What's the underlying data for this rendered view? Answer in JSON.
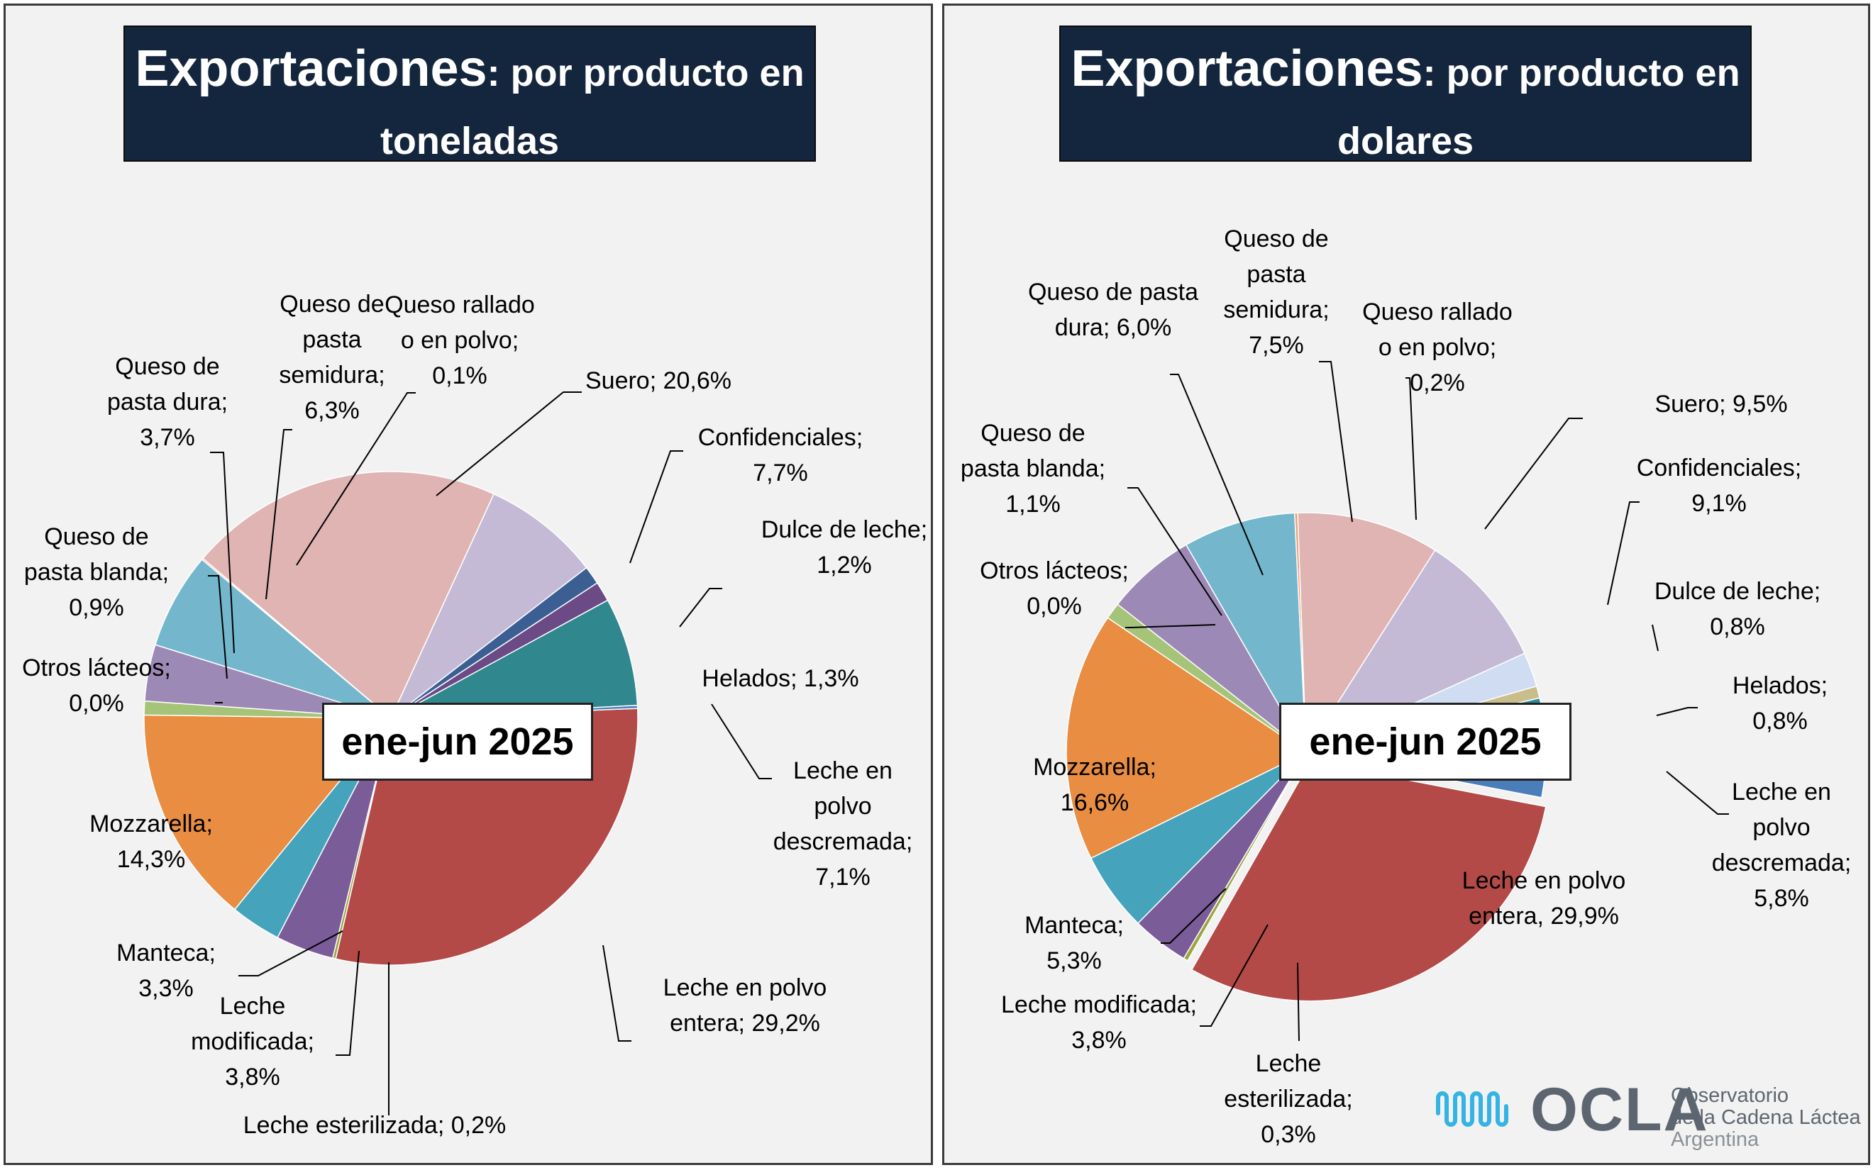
{
  "panels": [
    {
      "title_main": "Exportaciones",
      "title_rest": ": por producto en toneladas",
      "title_line2": "toneladas",
      "period": "ene-jun 2025"
    },
    {
      "title_main": "Exportaciones",
      "title_rest": ": por producto en dolares",
      "title_line2": "dolares",
      "period": "ene-jun 2025"
    }
  ],
  "logo": {
    "name": "OCLA",
    "line1": "Observatorio",
    "line2": "de la Cadena Láctea",
    "line3": "Argentina"
  },
  "chart_data": [
    {
      "type": "pie",
      "title": "Exportaciones: por producto en toneladas",
      "subtitle": "ene-jun 2025",
      "slices": [
        {
          "name": "Leche en polvo entera",
          "value": 29.2,
          "label": "Leche en polvo entera; 29,2%",
          "color": "#b34a48"
        },
        {
          "name": "Leche esterilizada",
          "value": 0.2,
          "label": "Leche esterilizada; 0,2%",
          "color": "#9aa63d"
        },
        {
          "name": "Leche modificada",
          "value": 3.8,
          "label": "Leche modificada; 3,8%",
          "color": "#7a5c99"
        },
        {
          "name": "Manteca",
          "value": 3.3,
          "label": "Manteca; 3,3%",
          "color": "#45a3bc"
        },
        {
          "name": "Mozzarella",
          "value": 14.3,
          "label": "Mozzarella; 14,3%",
          "color": "#e88d42"
        },
        {
          "name": "Otros lácteos",
          "value": 0.0,
          "label": "Otros lácteos; 0,0%",
          "color": "#4a7ebb"
        },
        {
          "name": "Queso de pasta blanda",
          "value": 0.9,
          "label": "Queso de pasta blanda; 0,9%",
          "color": "#a5c479"
        },
        {
          "name": "Queso de pasta dura",
          "value": 3.7,
          "label": "Queso de pasta dura; 3,7%",
          "color": "#9d89b5"
        },
        {
          "name": "Queso de pasta semidura",
          "value": 6.3,
          "label": "Queso de pasta semidura; 6,3%",
          "color": "#74b7cd"
        },
        {
          "name": "Queso rallado o en polvo",
          "value": 0.1,
          "label": "Queso rallado o en polvo; 0,1%",
          "color": "#f2a07b"
        },
        {
          "name": "Suero",
          "value": 20.6,
          "label": "Suero; 20,6%",
          "color": "#dfb4b3"
        },
        {
          "name": "Confidenciales",
          "value": 7.7,
          "label": "Confidenciales; 7,7%",
          "color": "#c4bad6"
        },
        {
          "name": "Dulce de leche",
          "value": 1.2,
          "label": "Dulce de leche; 1,2%",
          "color": "#3c5f93"
        },
        {
          "name": "Helados",
          "value": 1.3,
          "label": "Helados; 1,3%",
          "color": "#6b4a85"
        },
        {
          "name": "Leche en polvo descremada",
          "value": 7.1,
          "label": "Leche en polvo descremada; 7,1%",
          "color": "#31878e"
        },
        {
          "name": "Leche en polvo descremada",
          "value": 0.2,
          "label": "",
          "color": "#4a7ebb"
        }
      ]
    },
    {
      "type": "pie",
      "title": "Exportaciones: por producto en dolares",
      "subtitle": "ene-jun 2025",
      "slices": [
        {
          "name": "Leche en polvo entera",
          "value": 29.9,
          "label": "Leche en polvo entera; 29,9%",
          "color": "#b34a48"
        },
        {
          "name": "Leche esterilizada",
          "value": 0.3,
          "label": "Leche esterilizada; 0,3%",
          "color": "#9aa63d"
        },
        {
          "name": "Leche modificada",
          "value": 3.8,
          "label": "Leche modificada; 3,8%",
          "color": "#7a5c99"
        },
        {
          "name": "Manteca",
          "value": 5.3,
          "label": "Manteca; 5,3%",
          "color": "#45a3bc"
        },
        {
          "name": "Mozzarella",
          "value": 16.6,
          "label": "Mozzarella; 16,6%",
          "color": "#e88d42"
        },
        {
          "name": "Otros lácteos",
          "value": 0.0,
          "label": "Otros lácteos; 0,0%",
          "color": "#4a7ebb"
        },
        {
          "name": "Queso de pasta blanda",
          "value": 1.1,
          "label": "Queso de pasta blanda; 1,1%",
          "color": "#a5c479"
        },
        {
          "name": "Queso de pasta dura",
          "value": 6.0,
          "label": "Queso de pasta dura; 6,0%",
          "color": "#9d89b5"
        },
        {
          "name": "Queso de pasta semidura",
          "value": 7.5,
          "label": "Queso de pasta semidura; 7,5%",
          "color": "#74b7cd"
        },
        {
          "name": "Queso rallado o en polvo",
          "value": 0.2,
          "label": "Queso rallado o en polvo; 0,2%",
          "color": "#f2a07b"
        },
        {
          "name": "Suero",
          "value": 9.5,
          "label": "Suero; 9,5%",
          "color": "#dfb4b3"
        },
        {
          "name": "Confidenciales",
          "value": 9.1,
          "label": "Confidenciales; 9,1%",
          "color": "#c4bad6"
        },
        {
          "name": "",
          "value": 2.3,
          "label": "",
          "color": "#cfdcf1"
        },
        {
          "name": "Dulce de leche",
          "value": 0.8,
          "label": "Dulce de leche; 0,8%",
          "color": "#c9bd8c"
        },
        {
          "name": "Helados",
          "value": 0.8,
          "label": "Helados; 0,8%",
          "color": "#2f8a99"
        },
        {
          "name": "Leche en polvo descremada",
          "value": 5.8,
          "label": "Leche en polvo descremada; 5,8%",
          "color": "#4a7ebb"
        }
      ]
    }
  ],
  "labels_left": {
    "suero": [
      "Suero; 20,6%"
    ],
    "confidenciales": [
      "Confidenciales;",
      "7,7%"
    ],
    "dulce": [
      "Dulce de leche;",
      "1,2%"
    ],
    "helados": [
      "Helados; 1,3%"
    ],
    "lpd": [
      "Leche en",
      "polvo",
      "descremada;",
      "7,1%"
    ],
    "lpe": [
      "Leche en polvo",
      "entera; 29,2%"
    ],
    "esterilizada": [
      "Leche esterilizada; 0,2%"
    ],
    "modificada": [
      "Leche",
      "modificada;",
      "3,8%"
    ],
    "manteca": [
      "Manteca;",
      "3,3%"
    ],
    "mozzarella": [
      "Mozzarella;",
      "14,3%"
    ],
    "otros": [
      "Otros lácteos;",
      "0,0%"
    ],
    "blanda": [
      "Queso de",
      "pasta blanda;",
      "0,9%"
    ],
    "dura": [
      "Queso de",
      "pasta dura;",
      "3,7%"
    ],
    "semidura": [
      "Queso de",
      "pasta",
      "semidura;",
      "6,3%"
    ],
    "rallado": [
      "Queso rallado",
      "o en polvo;",
      "0,1%"
    ]
  },
  "labels_right": {
    "semidura": [
      "Queso de",
      "pasta",
      "semidura;",
      "7,5%"
    ],
    "rallado": [
      "Queso rallado",
      "o en polvo;",
      "0,2%"
    ],
    "dura": [
      "Queso de pasta",
      "dura; 6,0%"
    ],
    "suero": [
      "Suero; 9,5%"
    ],
    "blanda": [
      "Queso de",
      "pasta blanda;",
      "1,1%"
    ],
    "confidenciales": [
      "Confidenciales;",
      "9,1%"
    ],
    "otros": [
      "Otros lácteos;",
      "0,0%"
    ],
    "dulce": [
      "Dulce de leche;",
      "0,8%"
    ],
    "helados": [
      "Helados;",
      "0,8%"
    ],
    "mozzarella": [
      "Mozzarella;",
      "16,6%"
    ],
    "lpd": [
      "Leche en",
      "polvo",
      "descremada;",
      "5,8%"
    ],
    "lpe": [
      "Leche en polvo",
      "entera, 29,9%"
    ],
    "manteca": [
      "Manteca;",
      "5,3%"
    ],
    "modificada": [
      "Leche modificada;",
      "3,8%"
    ],
    "esterilizada": [
      "Leche",
      "esterilizada;",
      "0,3%"
    ]
  }
}
